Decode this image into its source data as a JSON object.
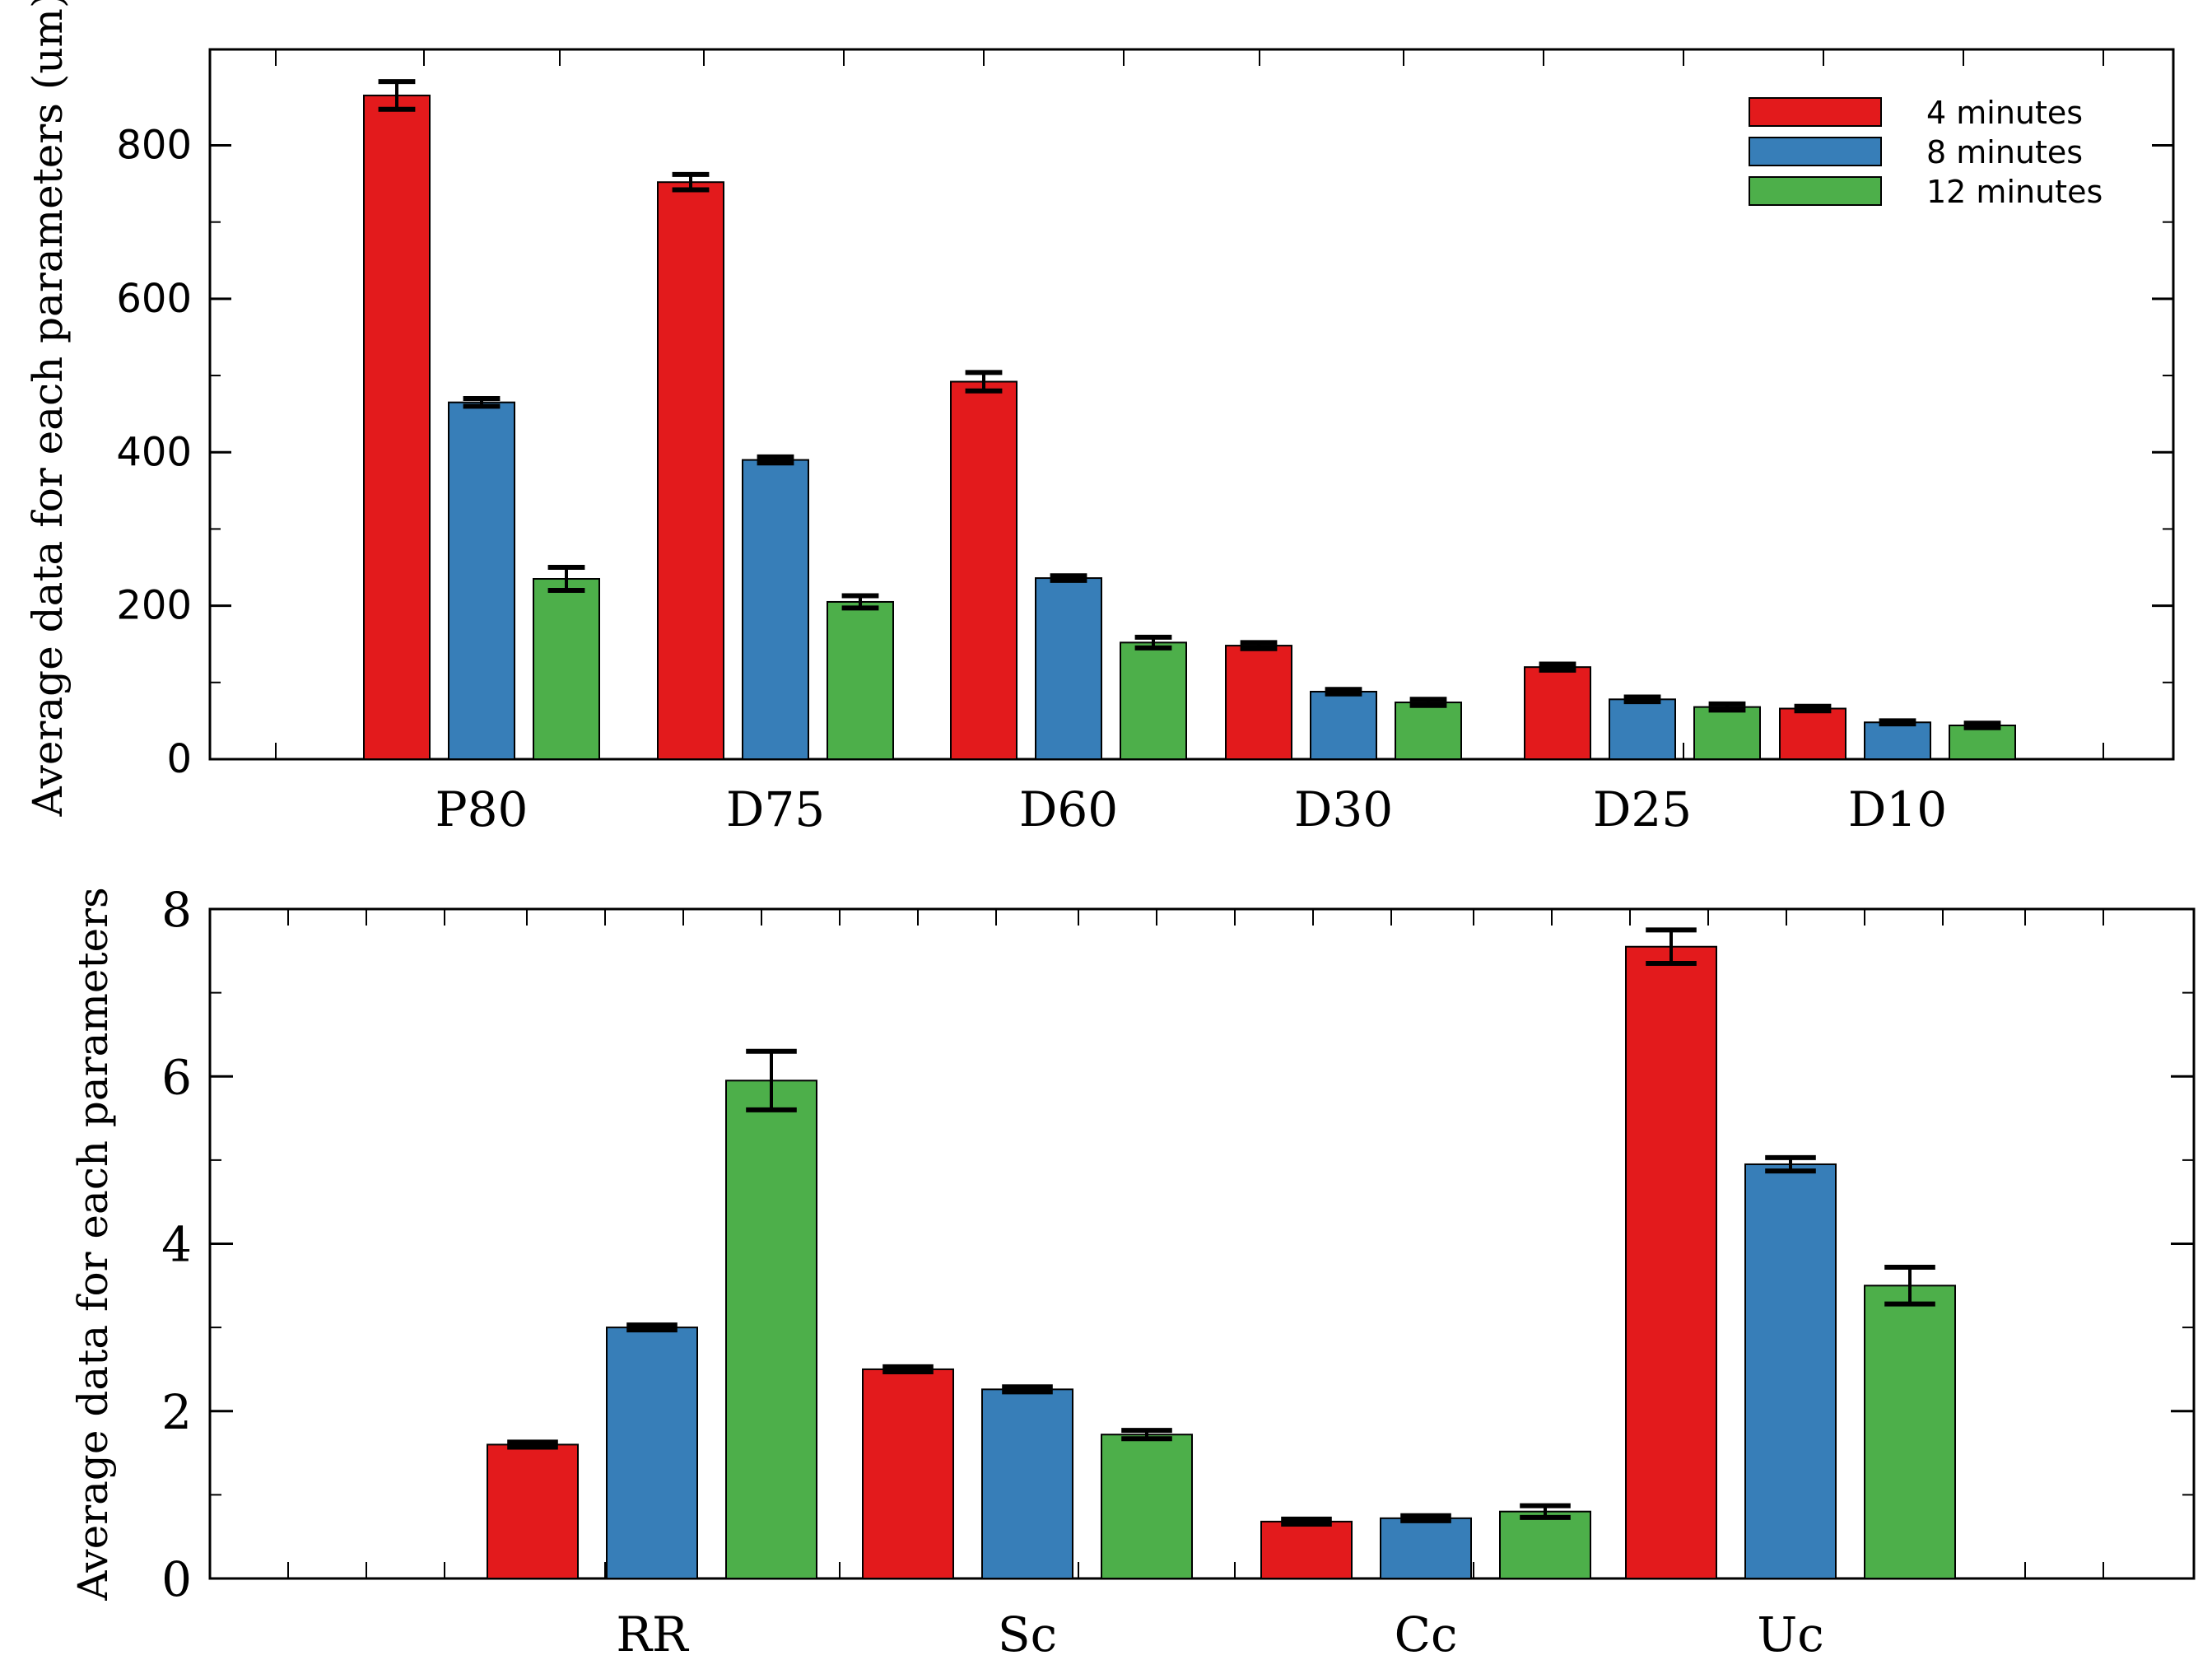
{
  "colors": {
    "s4": "#e31a1c",
    "s8": "#377eb8",
    "s12": "#4daf4a"
  },
  "legend": [
    {
      "name": "4 minutes",
      "color": "#e31a1c"
    },
    {
      "name": "8 minutes",
      "color": "#377eb8"
    },
    {
      "name": "12 minutes",
      "color": "#4daf4a"
    }
  ],
  "chart_data": [
    {
      "type": "bar",
      "title": "",
      "xlabel": "",
      "ylabel": "Average data for each parameters (um)",
      "ylim": [
        0,
        925
      ],
      "yticks": [
        0,
        200,
        400,
        600,
        800
      ],
      "ytick_labels": [
        "0",
        "200",
        "400",
        "600",
        "800"
      ],
      "categories": [
        "P80",
        "D75",
        "D60",
        "D30",
        "D25",
        "D10"
      ],
      "series": [
        {
          "name": "4 minutes",
          "values": [
            865,
            752,
            492,
            148,
            120,
            66
          ],
          "errors": [
            18,
            10,
            12,
            4,
            4,
            3
          ]
        },
        {
          "name": "8 minutes",
          "values": [
            465,
            390,
            236,
            88,
            78,
            48
          ],
          "errors": [
            5,
            4,
            3,
            3,
            3,
            2
          ]
        },
        {
          "name": "12 minutes",
          "values": [
            235,
            205,
            152,
            74,
            68,
            44
          ],
          "errors": [
            15,
            8,
            7,
            4,
            4,
            3
          ]
        }
      ],
      "legend_position": "top-right"
    },
    {
      "type": "bar",
      "title": "",
      "xlabel": "",
      "ylabel": "Average data for each parameters",
      "ylim": [
        0,
        8
      ],
      "yticks": [
        0,
        2,
        4,
        6,
        8
      ],
      "ytick_labels": [
        "0",
        "2",
        "4",
        "6",
        "8"
      ],
      "categories": [
        "RR",
        "Sc",
        "Cc",
        "Uc"
      ],
      "series": [
        {
          "name": "4 minutes",
          "values": [
            1.6,
            2.5,
            0.68,
            7.55
          ],
          "errors": [
            0.03,
            0.03,
            0.03,
            0.2
          ]
        },
        {
          "name": "8 minutes",
          "values": [
            3.0,
            2.26,
            0.72,
            4.95
          ],
          "errors": [
            0.03,
            0.03,
            0.03,
            0.08
          ]
        },
        {
          "name": "12 minutes",
          "values": [
            5.95,
            1.72,
            0.8,
            3.5
          ],
          "errors": [
            0.35,
            0.05,
            0.07,
            0.22
          ]
        }
      ],
      "legend_position": "none"
    }
  ]
}
